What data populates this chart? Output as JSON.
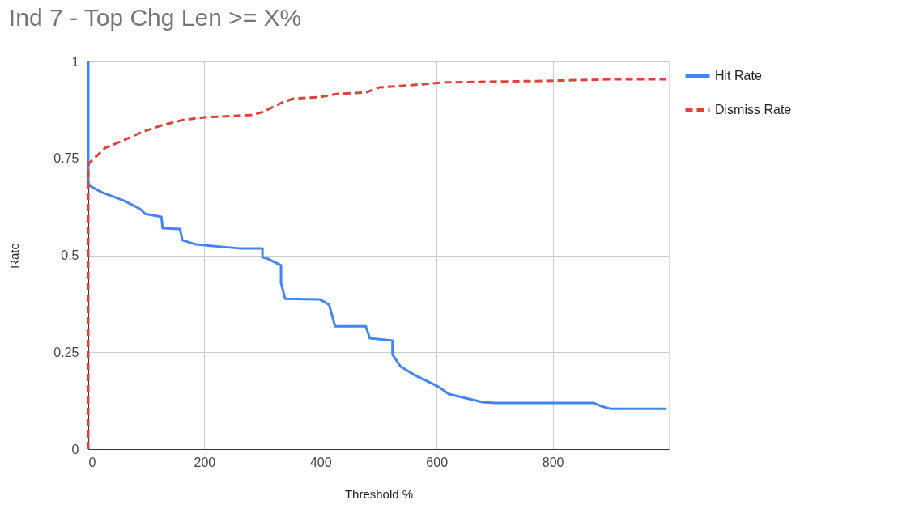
{
  "chart_data": {
    "type": "line",
    "title": "Ind 7 - Top Chg Len >= X%",
    "xlabel": "Threshold %",
    "ylabel": "Rate",
    "xlim": [
      0,
      1000
    ],
    "ylim": [
      0,
      1
    ],
    "xticks": [
      0,
      200,
      400,
      600,
      800
    ],
    "yticks": [
      0,
      0.25,
      0.5,
      0.75,
      1
    ],
    "grid": true,
    "legend": "top right",
    "series": [
      {
        "name": "Hit Rate",
        "color": "#4285f4",
        "line_style": "solid",
        "x": [
          0,
          0,
          3,
          24,
          61,
          89,
          98,
          126,
          128,
          158,
          162,
          186,
          260,
          300,
          300,
          311,
          332,
          332,
          339,
          399,
          415,
          425,
          478,
          485,
          524,
          524,
          538,
          561,
          603,
          621,
          679,
          700,
          871,
          883,
          899,
          996
        ],
        "values": [
          1,
          0.68,
          0.679,
          0.662,
          0.641,
          0.62,
          0.607,
          0.599,
          0.57,
          0.568,
          0.539,
          0.528,
          0.518,
          0.518,
          0.495,
          0.49,
          0.474,
          0.428,
          0.388,
          0.386,
          0.372,
          0.317,
          0.317,
          0.286,
          0.28,
          0.244,
          0.213,
          0.192,
          0.161,
          0.142,
          0.121,
          0.119,
          0.119,
          0.111,
          0.104,
          0.104
        ]
      },
      {
        "name": "Dismiss Rate",
        "color": "#db4437",
        "line_style": "dashed",
        "x": [
          0,
          0,
          1,
          29,
          61,
          93,
          126,
          163,
          200,
          283,
          301,
          334,
          353,
          399,
          427,
          478,
          501,
          557,
          612,
          788,
          904,
          996
        ],
        "values": [
          0,
          0.73,
          0.737,
          0.777,
          0.797,
          0.818,
          0.835,
          0.849,
          0.856,
          0.862,
          0.87,
          0.894,
          0.904,
          0.908,
          0.916,
          0.92,
          0.933,
          0.939,
          0.946,
          0.95,
          0.954,
          0.954
        ]
      }
    ]
  }
}
